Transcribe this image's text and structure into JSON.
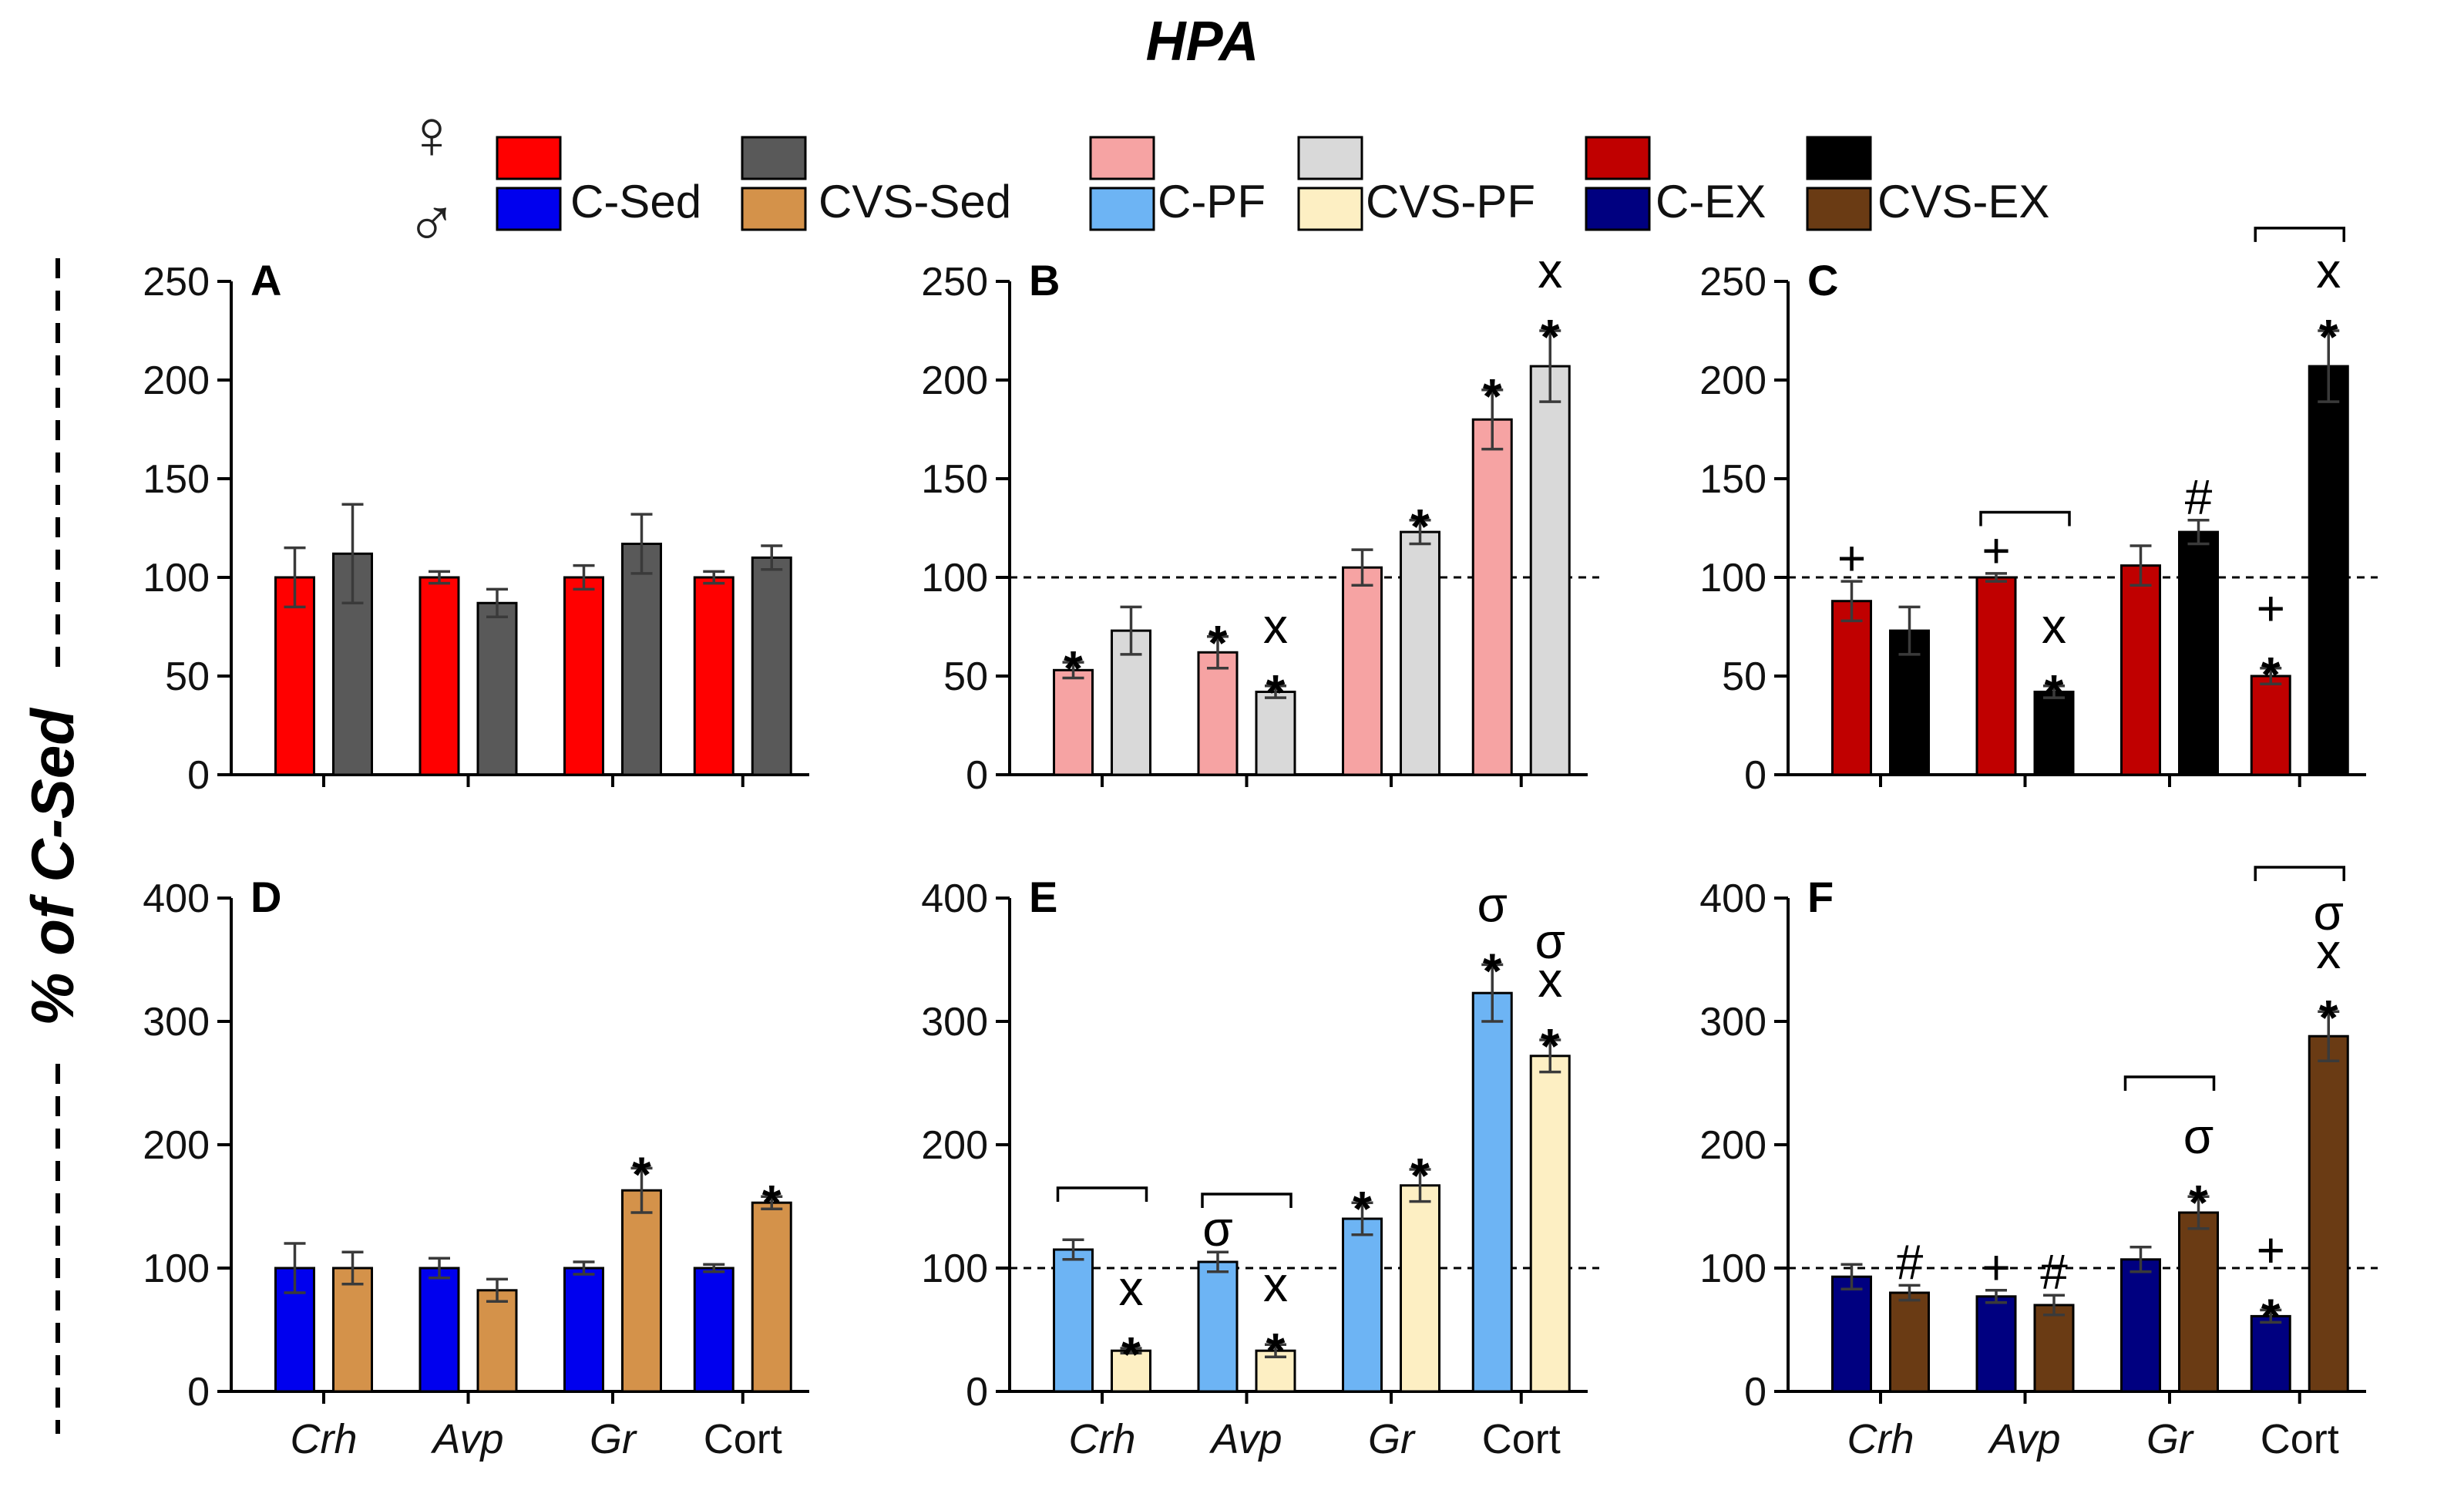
{
  "header": {
    "title": "HPA",
    "ylabel": "% of C-Sed",
    "female_symbol": "♀",
    "male_symbol": "♂"
  },
  "legend": [
    {
      "label": "C-Sed",
      "female_color": "#ff0000",
      "male_color": "#0000ee"
    },
    {
      "label": "CVS-Sed",
      "female_color": "#595959",
      "male_color": "#d4924a"
    },
    {
      "label": "C-PF",
      "female_color": "#f6a3a3",
      "male_color": "#6db4f4"
    },
    {
      "label": "CVS-PF",
      "female_color": "#d9d9d9",
      "male_color": "#fdefc3"
    },
    {
      "label": "C-EX",
      "female_color": "#c00000",
      "male_color": "#000080"
    },
    {
      "label": "CVS-EX",
      "female_color": "#000000",
      "male_color": "#6a3b14"
    }
  ],
  "category_labels": [
    "Crh",
    "Avp",
    "Gr",
    "Cort"
  ],
  "category_italic": [
    true,
    true,
    true,
    false
  ],
  "chart_data": [
    {
      "type": "bar",
      "panel": "A",
      "row": 0,
      "col": 0,
      "ylim": [
        0,
        250
      ],
      "yticks": [
        0,
        50,
        100,
        150,
        200,
        250
      ],
      "reference_line": null,
      "categories": [
        "Crh",
        "Avp",
        "Gr",
        "Cort"
      ],
      "colors": [
        "#ff0000",
        "#595959"
      ],
      "series": [
        {
          "name": "C-Sed",
          "values": [
            100,
            100,
            100,
            100
          ],
          "errors": [
            15,
            3,
            6,
            3
          ]
        },
        {
          "name": "CVS-Sed",
          "values": [
            112,
            87,
            117,
            110
          ],
          "errors": [
            25,
            7,
            15,
            6
          ]
        }
      ],
      "annotations": [],
      "brackets": []
    },
    {
      "type": "bar",
      "panel": "B",
      "row": 0,
      "col": 1,
      "ylim": [
        0,
        250
      ],
      "yticks": [
        0,
        50,
        100,
        150,
        200,
        250
      ],
      "reference_line": 100,
      "categories": [
        "Crh",
        "Avp",
        "Gr",
        "Cort"
      ],
      "colors": [
        "#f6a3a3",
        "#d9d9d9"
      ],
      "series": [
        {
          "name": "C-PF",
          "values": [
            53,
            62,
            105,
            180
          ],
          "errors": [
            4,
            8,
            9,
            15
          ]
        },
        {
          "name": "CVS-PF",
          "values": [
            73,
            42,
            123,
            207
          ],
          "errors": [
            12,
            3,
            6,
            18
          ]
        }
      ],
      "annotations": [
        {
          "category": 0,
          "series": 0,
          "marks": [
            "*"
          ]
        },
        {
          "category": 1,
          "series": 0,
          "marks": [
            "*"
          ]
        },
        {
          "category": 1,
          "series": 1,
          "marks": [
            "*",
            "x"
          ]
        },
        {
          "category": 2,
          "series": 1,
          "marks": [
            "*"
          ]
        },
        {
          "category": 3,
          "series": 0,
          "marks": [
            "*"
          ]
        },
        {
          "category": 3,
          "series": 1,
          "marks": [
            "*",
            "x"
          ]
        }
      ],
      "brackets": []
    },
    {
      "type": "bar",
      "panel": "C",
      "row": 0,
      "col": 2,
      "ylim": [
        0,
        250
      ],
      "yticks": [
        0,
        50,
        100,
        150,
        200,
        250
      ],
      "reference_line": 100,
      "categories": [
        "Crh",
        "Avp",
        "Gr",
        "Cort"
      ],
      "colors": [
        "#c00000",
        "#000000"
      ],
      "series": [
        {
          "name": "C-EX",
          "values": [
            88,
            100,
            106,
            50
          ],
          "errors": [
            10,
            2,
            10,
            4
          ]
        },
        {
          "name": "CVS-EX",
          "values": [
            73,
            42,
            123,
            207
          ],
          "errors": [
            12,
            3,
            6,
            18
          ]
        }
      ],
      "annotations": [
        {
          "category": 0,
          "series": 0,
          "marks": [
            "+"
          ]
        },
        {
          "category": 1,
          "series": 0,
          "marks": [
            "+"
          ]
        },
        {
          "category": 1,
          "series": 1,
          "marks": [
            "*",
            "x"
          ]
        },
        {
          "category": 2,
          "series": 1,
          "marks": [
            "#"
          ]
        },
        {
          "category": 3,
          "series": 0,
          "marks": [
            "*",
            "+"
          ]
        },
        {
          "category": 3,
          "series": 1,
          "marks": [
            "*",
            "x"
          ]
        }
      ],
      "brackets": [
        {
          "category": 1,
          "y": 133
        },
        {
          "category": 3,
          "y": 277
        }
      ]
    },
    {
      "type": "bar",
      "panel": "D",
      "row": 1,
      "col": 0,
      "ylim": [
        0,
        400
      ],
      "yticks": [
        0,
        100,
        200,
        300,
        400
      ],
      "reference_line": null,
      "categories": [
        "Crh",
        "Avp",
        "Gr",
        "Cort"
      ],
      "colors": [
        "#0000ee",
        "#d4924a"
      ],
      "series": [
        {
          "name": "C-Sed",
          "values": [
            100,
            100,
            100,
            100
          ],
          "errors": [
            20,
            8,
            5,
            3
          ]
        },
        {
          "name": "CVS-Sed",
          "values": [
            100,
            82,
            163,
            153
          ],
          "errors": [
            13,
            9,
            18,
            5
          ]
        }
      ],
      "annotations": [
        {
          "category": 2,
          "series": 1,
          "marks": [
            "*"
          ]
        },
        {
          "category": 3,
          "series": 1,
          "marks": [
            "*"
          ]
        }
      ],
      "brackets": []
    },
    {
      "type": "bar",
      "panel": "E",
      "row": 1,
      "col": 1,
      "ylim": [
        0,
        400
      ],
      "yticks": [
        0,
        100,
        200,
        300,
        400
      ],
      "reference_line": 100,
      "categories": [
        "Crh",
        "Avp",
        "Gr",
        "Cort"
      ],
      "colors": [
        "#6db4f4",
        "#fdefc3"
      ],
      "series": [
        {
          "name": "C-PF",
          "values": [
            115,
            105,
            140,
            323
          ],
          "errors": [
            8,
            8,
            13,
            23
          ]
        },
        {
          "name": "CVS-PF",
          "values": [
            33,
            33,
            167,
            272
          ],
          "errors": [
            2,
            5,
            13,
            13
          ]
        }
      ],
      "annotations": [
        {
          "category": 0,
          "series": 1,
          "marks": [
            "*",
            "x"
          ]
        },
        {
          "category": 1,
          "series": 0,
          "marks": [
            "σ"
          ]
        },
        {
          "category": 1,
          "series": 1,
          "marks": [
            "*",
            "x"
          ]
        },
        {
          "category": 2,
          "series": 0,
          "marks": [
            "*"
          ]
        },
        {
          "category": 2,
          "series": 1,
          "marks": [
            "*"
          ]
        },
        {
          "category": 3,
          "series": 0,
          "marks": [
            "*",
            "σ"
          ]
        },
        {
          "category": 3,
          "series": 1,
          "marks": [
            "*",
            "x",
            "σ"
          ]
        }
      ],
      "brackets": [
        {
          "category": 0,
          "y": 165
        },
        {
          "category": 1,
          "y": 160
        }
      ]
    },
    {
      "type": "bar",
      "panel": "F",
      "row": 1,
      "col": 2,
      "ylim": [
        0,
        400
      ],
      "yticks": [
        0,
        100,
        200,
        300,
        400
      ],
      "reference_line": 100,
      "categories": [
        "Crh",
        "Avp",
        "Gr",
        "Cort"
      ],
      "colors": [
        "#000080",
        "#6a3b14"
      ],
      "series": [
        {
          "name": "C-EX",
          "values": [
            93,
            77,
            107,
            61
          ],
          "errors": [
            10,
            5,
            10,
            5
          ]
        },
        {
          "name": "CVS-EX",
          "values": [
            80,
            70,
            145,
            288
          ],
          "errors": [
            6,
            8,
            13,
            20
          ]
        }
      ],
      "annotations": [
        {
          "category": 0,
          "series": 1,
          "marks": [
            "#"
          ]
        },
        {
          "category": 1,
          "series": 0,
          "marks": [
            "+"
          ]
        },
        {
          "category": 1,
          "series": 1,
          "marks": [
            "#"
          ]
        },
        {
          "category": 2,
          "series": 1,
          "marks": [
            "*",
            "σ"
          ]
        },
        {
          "category": 3,
          "series": 0,
          "marks": [
            "*",
            "+"
          ]
        },
        {
          "category": 3,
          "series": 1,
          "marks": [
            "*",
            "x",
            "σ"
          ]
        }
      ],
      "brackets": [
        {
          "category": 2,
          "y": 255
        },
        {
          "category": 3,
          "y": 425
        }
      ]
    }
  ]
}
